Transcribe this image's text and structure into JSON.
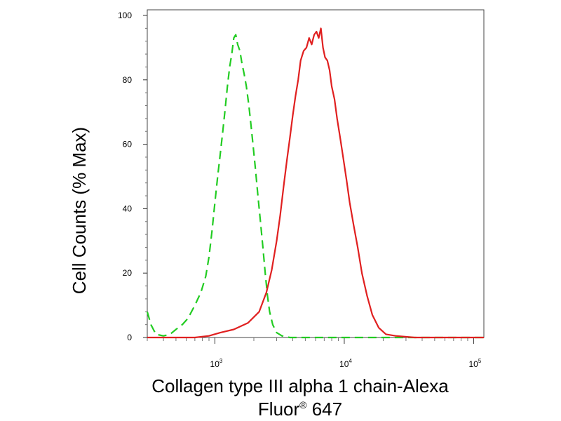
{
  "chart_data": {
    "type": "line",
    "title": "",
    "xlabel": "Collagen type III alpha 1 chain-Alexa",
    "xlabel_line2": "Fluor",
    "xlabel_sup": "®",
    "xlabel_suffix": " 647",
    "ylabel": "Cell Counts (% Max)",
    "x_scale": "log",
    "xlim": [
      300,
      120000
    ],
    "ylim": [
      0,
      100
    ],
    "grid": false,
    "legend": "none",
    "x_ticks": [
      {
        "value": 1000,
        "base": "10",
        "exp": "3"
      },
      {
        "value": 10000,
        "base": "10",
        "exp": "4"
      },
      {
        "value": 100000,
        "base": "10",
        "exp": "5"
      }
    ],
    "y_ticks": [
      {
        "value": 0,
        "label": "0"
      },
      {
        "value": 20,
        "label": "20"
      },
      {
        "value": 40,
        "label": "40"
      },
      {
        "value": 60,
        "label": "60"
      },
      {
        "value": 80,
        "label": "80"
      },
      {
        "value": 100,
        "label": "100"
      }
    ],
    "series": [
      {
        "color": "#22cc22",
        "style": "dashed",
        "points": [
          [
            300,
            8
          ],
          [
            320,
            4
          ],
          [
            350,
            1
          ],
          [
            400,
            0.5
          ],
          [
            450,
            1
          ],
          [
            500,
            2.5
          ],
          [
            560,
            4
          ],
          [
            620,
            6
          ],
          [
            700,
            10
          ],
          [
            780,
            14
          ],
          [
            850,
            19
          ],
          [
            900,
            25
          ],
          [
            950,
            33
          ],
          [
            1000,
            42
          ],
          [
            1050,
            50
          ],
          [
            1100,
            57
          ],
          [
            1150,
            64
          ],
          [
            1200,
            71
          ],
          [
            1250,
            78
          ],
          [
            1300,
            84
          ],
          [
            1350,
            88
          ],
          [
            1400,
            93
          ],
          [
            1450,
            94
          ],
          [
            1500,
            91
          ],
          [
            1560,
            89
          ],
          [
            1620,
            85
          ],
          [
            1680,
            82
          ],
          [
            1750,
            78
          ],
          [
            1830,
            72
          ],
          [
            1900,
            66
          ],
          [
            1980,
            59
          ],
          [
            2060,
            52
          ],
          [
            2150,
            44
          ],
          [
            2250,
            36
          ],
          [
            2350,
            28
          ],
          [
            2450,
            20
          ],
          [
            2550,
            13
          ],
          [
            2650,
            8
          ],
          [
            2800,
            4
          ],
          [
            3000,
            1.5
          ],
          [
            3300,
            0.5
          ],
          [
            3800,
            0
          ],
          [
            6000,
            0
          ],
          [
            20000,
            0
          ],
          [
            120000,
            0
          ]
        ]
      },
      {
        "color": "#e02020",
        "style": "solid",
        "points": [
          [
            300,
            0
          ],
          [
            700,
            0
          ],
          [
            900,
            0.5
          ],
          [
            1100,
            1.5
          ],
          [
            1400,
            2.5
          ],
          [
            1800,
            4.5
          ],
          [
            2200,
            8
          ],
          [
            2500,
            14
          ],
          [
            2750,
            21
          ],
          [
            3000,
            30
          ],
          [
            3200,
            38
          ],
          [
            3400,
            47
          ],
          [
            3600,
            55
          ],
          [
            3800,
            62
          ],
          [
            4000,
            69
          ],
          [
            4200,
            75
          ],
          [
            4400,
            80
          ],
          [
            4600,
            86
          ],
          [
            4850,
            89
          ],
          [
            5100,
            90
          ],
          [
            5350,
            93
          ],
          [
            5600,
            91
          ],
          [
            5850,
            94
          ],
          [
            6100,
            95
          ],
          [
            6350,
            93
          ],
          [
            6600,
            96
          ],
          [
            6850,
            90
          ],
          [
            7100,
            87
          ],
          [
            7400,
            86
          ],
          [
            7700,
            83
          ],
          [
            8000,
            78
          ],
          [
            8400,
            74
          ],
          [
            8800,
            68
          ],
          [
            9300,
            62
          ],
          [
            9800,
            56
          ],
          [
            10400,
            49
          ],
          [
            11000,
            42
          ],
          [
            11800,
            35
          ],
          [
            12700,
            28
          ],
          [
            13700,
            20
          ],
          [
            15000,
            13
          ],
          [
            16500,
            7
          ],
          [
            18500,
            3
          ],
          [
            21000,
            1
          ],
          [
            25000,
            0.5
          ],
          [
            35000,
            0
          ],
          [
            120000,
            0
          ]
        ]
      }
    ]
  }
}
